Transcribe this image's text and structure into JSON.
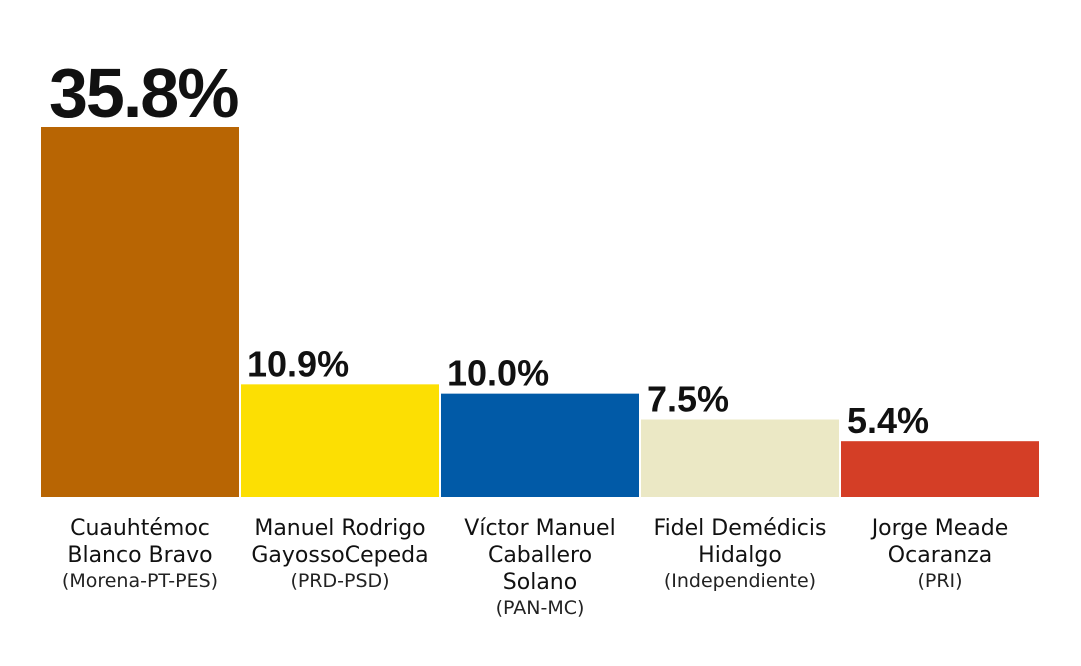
{
  "chart_data": {
    "type": "bar",
    "value_format": "%",
    "categories": [
      {
        "name_lines": [
          "Cuauhtémoc",
          "Blanco Bravo"
        ],
        "party": "(Morena-PT-PES)",
        "value_label": "35.8%",
        "color": "#B86503"
      },
      {
        "name_lines": [
          "Manuel Rodrigo",
          "GayossoCepeda"
        ],
        "party": "(PRD-PSD)",
        "value_label": "10.9%",
        "color": "#FCDF03"
      },
      {
        "name_lines": [
          "Víctor Manuel",
          "Caballero",
          "Solano"
        ],
        "party": "(PAN-MC)",
        "value_label": "10.0%",
        "color": "#015AA7"
      },
      {
        "name_lines": [
          "Fidel Demédicis",
          "Hidalgo"
        ],
        "party": "(Independiente)",
        "value_label": "7.5%",
        "color": "#EBE8C5"
      },
      {
        "name_lines": [
          "Jorge Meade",
          "Ocaranza"
        ],
        "party": "(PRI)",
        "value_label": "5.4%",
        "color": "#D43E26"
      }
    ],
    "values": [
      35.8,
      10.9,
      10.0,
      7.5,
      5.4
    ],
    "ylim": [
      0,
      35.8
    ],
    "grid": false,
    "legend": "none"
  }
}
